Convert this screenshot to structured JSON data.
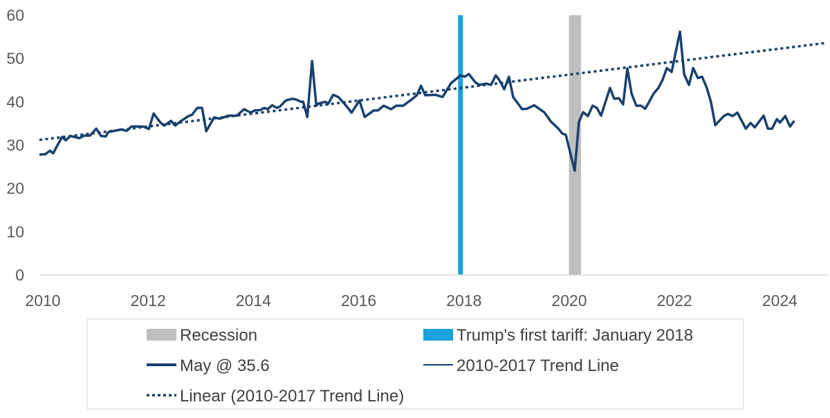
{
  "chart_data": {
    "type": "line",
    "title": "",
    "xlabel": "",
    "ylabel": "",
    "xlim": [
      2010,
      2024.95
    ],
    "ylim": [
      0,
      60
    ],
    "x_ticks": [
      "2010",
      "2012",
      "2014",
      "2016",
      "2018",
      "2020",
      "2022",
      "2024"
    ],
    "y_ticks": [
      "0",
      "10",
      "20",
      "30",
      "40",
      "50",
      "60"
    ],
    "grid": false,
    "legend_position": "bottom",
    "colors": {
      "series": "#17406D",
      "tariff": "#1BA1DB",
      "recession": "#BFBFBF"
    },
    "recession": {
      "name": "Recession",
      "x_start": 2020.06,
      "x_end": 2020.29
    },
    "tariff": {
      "name": "Trump's first tariff: January 2018",
      "x": 2018.0
    },
    "series": [
      {
        "name": "May @ 35.6",
        "style": "solid-thick",
        "x": [
          2010.0,
          2010.11,
          2010.2,
          2010.26,
          2010.43,
          2010.5,
          2010.59,
          2010.76,
          2010.85,
          2010.96,
          2011.08,
          2011.17,
          2011.26,
          2011.31,
          2011.55,
          2011.66,
          2011.75,
          2011.97,
          2012.08,
          2012.17,
          2012.3,
          2012.37,
          2012.5,
          2012.58,
          2012.67,
          2012.83,
          2012.9,
          2013.0,
          2013.09,
          2013.17,
          2013.32,
          2013.43,
          2013.59,
          2013.75,
          2013.89,
          2014.01,
          2014.09,
          2014.2,
          2014.27,
          2014.34,
          2014.42,
          2014.51,
          2014.57,
          2014.68,
          2014.81,
          2014.88,
          2014.97,
          2015.01,
          2015.09,
          2015.18,
          2015.26,
          2015.3,
          2015.43,
          2015.49,
          2015.58,
          2015.68,
          2015.82,
          2015.93,
          2016.08,
          2016.18,
          2016.35,
          2016.43,
          2016.54,
          2016.68,
          2016.78,
          2016.91,
          2017.1,
          2017.17,
          2017.25,
          2017.33,
          2017.53,
          2017.66,
          2017.82,
          2018.0,
          2018.08,
          2018.16,
          2018.28,
          2018.36,
          2018.49,
          2018.58,
          2018.67,
          2018.75,
          2018.83,
          2018.92,
          2019.0,
          2019.17,
          2019.26,
          2019.4,
          2019.59,
          2019.72,
          2019.86,
          2019.93,
          2020.0,
          2020.17,
          2020.25,
          2020.33,
          2020.42,
          2020.51,
          2020.59,
          2020.67,
          2020.84,
          2020.92,
          2021.01,
          2021.09,
          2021.17,
          2021.25,
          2021.34,
          2021.43,
          2021.51,
          2021.58,
          2021.67,
          2021.76,
          2021.84,
          2021.92,
          2022.01,
          2022.17,
          2022.25,
          2022.34,
          2022.42,
          2022.51,
          2022.59,
          2022.68,
          2022.76,
          2022.84,
          2023.01,
          2023.08,
          2023.17,
          2023.26,
          2023.42,
          2023.51,
          2023.59,
          2023.76,
          2023.84,
          2023.92,
          2024.01,
          2024.07,
          2024.17,
          2024.26,
          2024.34
        ],
        "y": [
          27.8,
          27.9,
          28.7,
          28.1,
          31.9,
          31.1,
          32.1,
          31.6,
          32.2,
          32.2,
          33.8,
          32.1,
          32.0,
          33.0,
          33.6,
          33.3,
          34.3,
          34.3,
          33.7,
          37.3,
          35.2,
          34.5,
          35.6,
          34.5,
          35.4,
          36.7,
          37.0,
          38.6,
          38.6,
          33.2,
          36.4,
          36.1,
          36.8,
          36.8,
          38.3,
          37.5,
          38.0,
          38.1,
          38.6,
          38.3,
          39.2,
          38.6,
          38.9,
          40.3,
          40.7,
          40.5,
          40.0,
          40.0,
          36.5,
          49.4,
          39.1,
          39.6,
          40.0,
          39.6,
          41.6,
          41.1,
          39.2,
          37.5,
          40.3,
          36.5,
          38.0,
          38.0,
          39.1,
          38.3,
          39.1,
          39.1,
          40.8,
          41.5,
          43.7,
          41.5,
          41.6,
          41.1,
          44.3,
          46.1,
          45.8,
          46.4,
          44.5,
          43.9,
          44.2,
          43.9,
          46.1,
          44.8,
          42.9,
          45.8,
          41.1,
          38.3,
          38.4,
          39.2,
          37.6,
          35.4,
          33.8,
          32.7,
          32.4,
          24.1,
          35.4,
          37.6,
          36.7,
          39.1,
          38.6,
          36.8,
          43.2,
          40.7,
          40.8,
          39.4,
          47.7,
          41.9,
          39.1,
          39.1,
          38.4,
          39.9,
          41.9,
          43.2,
          45.1,
          47.8,
          46.9,
          56.2,
          46.3,
          43.9,
          47.8,
          45.5,
          45.8,
          43.2,
          39.9,
          34.6,
          36.8,
          37.2,
          36.7,
          37.5,
          33.8,
          35.1,
          34.1,
          36.8,
          33.8,
          33.8,
          36.0,
          35.2,
          36.7,
          34.3,
          35.6
        ]
      },
      {
        "name": "2010-2017 Trend Line",
        "style": "solid-thin"
      },
      {
        "name": "Linear (2010-2017 Trend Line)",
        "style": "dotted",
        "x": [
          2010.0,
          2024.95
        ],
        "y": [
          31.2,
          53.6
        ]
      }
    ]
  }
}
